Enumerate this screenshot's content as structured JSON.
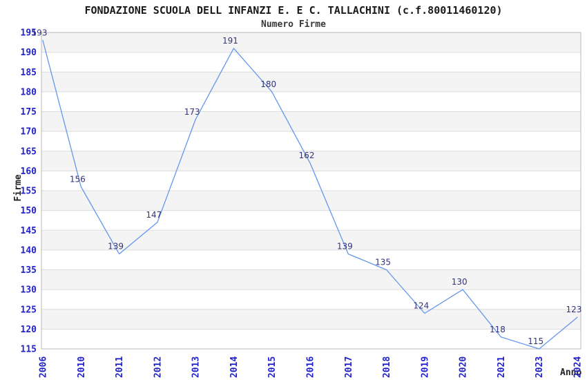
{
  "header": {
    "title": "FONDAZIONE SCUOLA DELL INFANZI E. E C. TALLACHINI (c.f.80011460120)",
    "subtitle": "Numero Firme"
  },
  "chart_data": {
    "type": "line",
    "title": "FONDAZIONE SCUOLA DELL INFANZI E. E C. TALLACHINI (c.f.80011460120)",
    "subtitle": "Numero Firme",
    "xlabel": "Anno",
    "ylabel": "Firme",
    "categories": [
      "2006",
      "2010",
      "2011",
      "2012",
      "2013",
      "2014",
      "2015",
      "2016",
      "2017",
      "2018",
      "2019",
      "2020",
      "2021",
      "2023",
      "2024"
    ],
    "series": [
      {
        "name": "Numero Firme",
        "values": [
          193,
          156,
          139,
          147,
          173,
          191,
          180,
          162,
          139,
          135,
          124,
          130,
          118,
          115,
          123
        ]
      }
    ],
    "ylim": [
      115,
      195
    ],
    "ytick_step": 5,
    "grid": "alternating-horizontal-bands",
    "legend": "none",
    "point_labels_visible": true,
    "colors": {
      "line": "#6495ed",
      "value_labels": "#333377",
      "tick_labels": "#2222cc",
      "band_fill": "#f4f4f4",
      "gridline": "#dcdcdc",
      "plot_border": "#b9b9b9",
      "title_text": "#1a1a1a",
      "axis_title_text": "#222222",
      "background": "#ffffff"
    }
  }
}
